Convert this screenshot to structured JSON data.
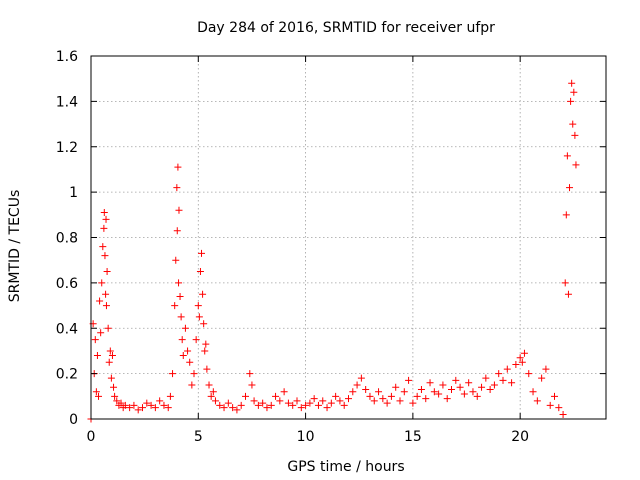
{
  "chart_data": {
    "type": "scatter",
    "title": "Day 284 of 2016, SRMTID for receiver ufpr",
    "xlabel": "GPS time / hours",
    "ylabel": "SRMTID / TECUs",
    "xlim": [
      0,
      24
    ],
    "ylim": [
      0,
      1.6
    ],
    "xticks": [
      0,
      5,
      10,
      15,
      20
    ],
    "xtick_labels": [
      "0",
      "5",
      "10",
      "15",
      "20"
    ],
    "yticks": [
      0,
      0.2,
      0.4,
      0.6,
      0.8,
      1.0,
      1.2,
      1.4,
      1.6
    ],
    "ytick_labels": [
      "0",
      "0.2",
      "0.4",
      "0.6",
      "0.8",
      "1",
      "1.2",
      "1.4",
      "1.6"
    ],
    "grid": true,
    "marker": "+",
    "color": "#ff0000",
    "series": [
      {
        "name": "SRMTID",
        "x": [
          0.0,
          0.1,
          0.15,
          0.2,
          0.25,
          0.3,
          0.35,
          0.4,
          0.45,
          0.5,
          0.55,
          0.6,
          0.62,
          0.65,
          0.68,
          0.7,
          0.72,
          0.75,
          0.8,
          0.85,
          0.9,
          0.95,
          1.0,
          1.05,
          1.1,
          1.2,
          1.3,
          1.4,
          1.5,
          1.6,
          1.8,
          2.0,
          2.2,
          2.4,
          2.6,
          2.8,
          3.0,
          3.2,
          3.4,
          3.6,
          3.7,
          3.8,
          3.9,
          3.95,
          4.0,
          4.02,
          4.05,
          4.08,
          4.1,
          4.15,
          4.2,
          4.25,
          4.3,
          4.4,
          4.5,
          4.6,
          4.7,
          4.8,
          4.9,
          5.0,
          5.05,
          5.1,
          5.15,
          5.2,
          5.25,
          5.3,
          5.35,
          5.4,
          5.5,
          5.6,
          5.7,
          5.8,
          6.0,
          6.2,
          6.4,
          6.6,
          6.8,
          7.0,
          7.2,
          7.4,
          7.5,
          7.6,
          7.8,
          8.0,
          8.2,
          8.4,
          8.6,
          8.8,
          9.0,
          9.2,
          9.4,
          9.6,
          9.8,
          10.0,
          10.2,
          10.4,
          10.6,
          10.8,
          11.0,
          11.2,
          11.4,
          11.6,
          11.8,
          12.0,
          12.2,
          12.4,
          12.6,
          12.8,
          13.0,
          13.2,
          13.4,
          13.6,
          13.8,
          14.0,
          14.2,
          14.4,
          14.6,
          14.8,
          15.0,
          15.2,
          15.4,
          15.6,
          15.8,
          16.0,
          16.2,
          16.4,
          16.6,
          16.8,
          17.0,
          17.2,
          17.4,
          17.6,
          17.8,
          18.0,
          18.2,
          18.4,
          18.6,
          18.8,
          19.0,
          19.2,
          19.4,
          19.6,
          19.8,
          20.0,
          20.1,
          20.2,
          20.4,
          20.6,
          20.8,
          21.0,
          21.2,
          21.4,
          21.6,
          21.8,
          22.0,
          22.1,
          22.15,
          22.2,
          22.25,
          22.3,
          22.35,
          22.4,
          22.45,
          22.5,
          22.55,
          22.6
        ],
        "y": [
          0.0,
          0.42,
          0.2,
          0.35,
          0.12,
          0.28,
          0.1,
          0.52,
          0.38,
          0.6,
          0.76,
          0.84,
          0.91,
          0.72,
          0.55,
          0.88,
          0.5,
          0.65,
          0.4,
          0.25,
          0.3,
          0.18,
          0.28,
          0.14,
          0.1,
          0.08,
          0.06,
          0.07,
          0.05,
          0.06,
          0.05,
          0.06,
          0.04,
          0.05,
          0.07,
          0.06,
          0.05,
          0.08,
          0.06,
          0.05,
          0.1,
          0.2,
          0.5,
          0.7,
          1.02,
          0.83,
          1.11,
          0.6,
          0.92,
          0.54,
          0.45,
          0.35,
          0.28,
          0.4,
          0.3,
          0.25,
          0.15,
          0.2,
          0.35,
          0.5,
          0.45,
          0.65,
          0.73,
          0.55,
          0.42,
          0.3,
          0.33,
          0.22,
          0.15,
          0.1,
          0.12,
          0.08,
          0.06,
          0.05,
          0.07,
          0.05,
          0.04,
          0.06,
          0.1,
          0.2,
          0.15,
          0.08,
          0.06,
          0.07,
          0.05,
          0.06,
          0.1,
          0.08,
          0.12,
          0.07,
          0.06,
          0.08,
          0.05,
          0.06,
          0.07,
          0.09,
          0.06,
          0.08,
          0.05,
          0.07,
          0.1,
          0.08,
          0.06,
          0.09,
          0.12,
          0.15,
          0.18,
          0.13,
          0.1,
          0.08,
          0.12,
          0.09,
          0.07,
          0.1,
          0.14,
          0.08,
          0.12,
          0.17,
          0.07,
          0.1,
          0.13,
          0.09,
          0.16,
          0.12,
          0.11,
          0.15,
          0.09,
          0.13,
          0.17,
          0.14,
          0.11,
          0.16,
          0.12,
          0.1,
          0.14,
          0.18,
          0.13,
          0.15,
          0.2,
          0.17,
          0.22,
          0.16,
          0.24,
          0.27,
          0.25,
          0.29,
          0.2,
          0.12,
          0.08,
          0.18,
          0.22,
          0.06,
          0.1,
          0.05,
          0.02,
          0.6,
          0.9,
          1.16,
          0.55,
          1.02,
          1.4,
          1.48,
          1.3,
          1.44,
          1.25,
          1.12
        ]
      }
    ]
  }
}
